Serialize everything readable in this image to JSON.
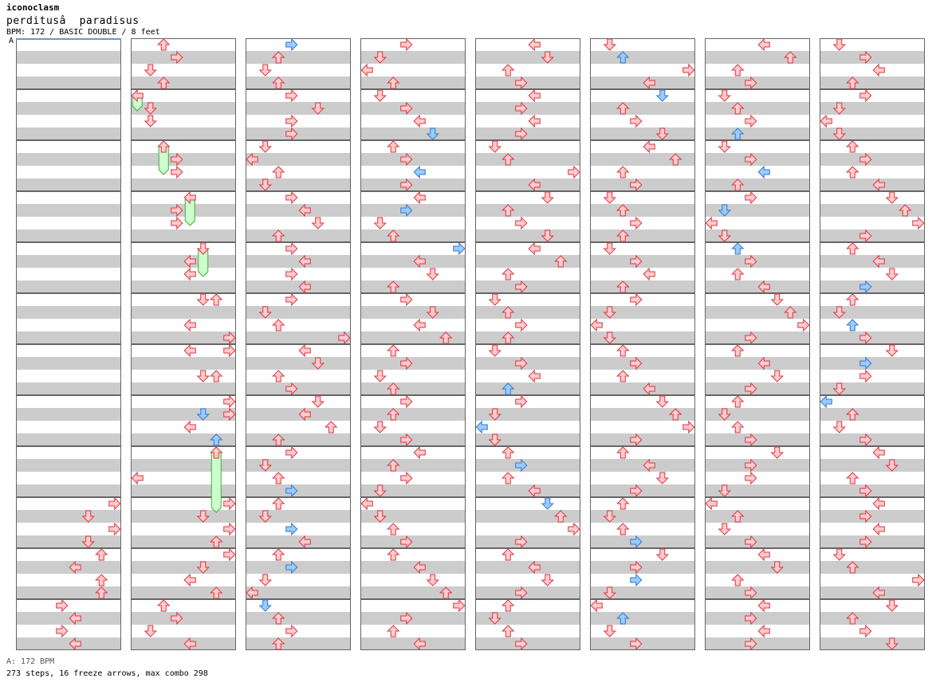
{
  "header": {
    "artist": "iconoclasm",
    "song": "perditusâ  paradisus",
    "info": "BPM: 172 / BASIC DOUBLE / 8 feet",
    "bpm_marker": "A"
  },
  "footer": {
    "bpm_legend": "A: 172 BPM",
    "stats": "273 steps, 16 freeze arrows, max combo 298"
  },
  "colors": {
    "row_gray": "#cccccc",
    "border": "#666666",
    "note_red_fill": "#ffcccc",
    "note_red_stroke": "#dd3344",
    "note_blue_fill": "#99ccff",
    "note_blue_stroke": "#3377cc",
    "freeze_fill": "#ccffcc",
    "freeze_stroke": "#44aa44",
    "bpm_line": "#6699cc"
  },
  "chart_data": {
    "type": "step-chart",
    "style": "double",
    "lanes_per_measure": 8,
    "lane_order": [
      "left-1",
      "down-1",
      "up-1",
      "right-1",
      "left-2",
      "down-2",
      "up-2",
      "right-2"
    ],
    "measures_per_column": 12,
    "columns": 8,
    "subdivisions_per_measure": 16,
    "notes_note": "beat = position within measure in 16ths; lane 0-7; color red|blue",
    "measures": [
      {
        "n": 1,
        "notes": []
      },
      {
        "n": 2,
        "notes": []
      },
      {
        "n": 3,
        "notes": []
      },
      {
        "n": 4,
        "notes": []
      },
      {
        "n": 5,
        "notes": []
      },
      {
        "n": 6,
        "notes": []
      },
      {
        "n": 7,
        "notes": []
      },
      {
        "n": 8,
        "notes": []
      },
      {
        "n": 9,
        "notes": []
      },
      {
        "n": 10,
        "notes": [
          {
            "b": 0,
            "l": 7
          },
          {
            "b": 4,
            "l": 5
          },
          {
            "b": 8,
            "l": 7
          },
          {
            "b": 12,
            "l": 5
          }
        ]
      },
      {
        "n": 11,
        "notes": [
          {
            "b": 0,
            "l": 6
          },
          {
            "b": 4,
            "l": 4
          },
          {
            "b": 8,
            "l": 6
          },
          {
            "b": 12,
            "l": 6
          }
        ]
      },
      {
        "n": 12,
        "notes": [
          {
            "b": 0,
            "l": 3
          },
          {
            "b": 4,
            "l": 4
          },
          {
            "b": 8,
            "l": 3
          },
          {
            "b": 12,
            "l": 4
          }
        ]
      },
      {
        "n": 13,
        "notes": [
          {
            "b": 0,
            "l": 2
          },
          {
            "b": 4,
            "l": 3
          },
          {
            "b": 8,
            "l": 1
          },
          {
            "b": 12,
            "l": 2
          }
        ]
      },
      {
        "n": 14,
        "notes": [
          {
            "b": 0,
            "l": 0,
            "f": 4
          },
          {
            "b": 4,
            "l": 1
          },
          {
            "b": 8,
            "l": 1
          }
        ]
      },
      {
        "n": 15,
        "notes": [
          {
            "b": 0,
            "l": 2,
            "f": 8
          },
          {
            "b": 4,
            "l": 3
          },
          {
            "b": 8,
            "l": 3
          }
        ]
      },
      {
        "n": 16,
        "notes": [
          {
            "b": 0,
            "l": 4,
            "f": 8
          },
          {
            "b": 4,
            "l": 3
          },
          {
            "b": 8,
            "l": 3
          }
        ]
      },
      {
        "n": 17,
        "notes": [
          {
            "b": 0,
            "l": 5,
            "f": 8
          },
          {
            "b": 4,
            "l": 4
          },
          {
            "b": 8,
            "l": 4
          }
        ]
      },
      {
        "n": 18,
        "notes": [
          {
            "b": 0,
            "l": 5
          },
          {
            "b": 0,
            "l": 6
          },
          {
            "b": 8,
            "l": 4
          },
          {
            "b": 12,
            "l": 7
          }
        ]
      },
      {
        "n": 19,
        "notes": [
          {
            "b": 0,
            "l": 4
          },
          {
            "b": 0,
            "l": 7
          },
          {
            "b": 8,
            "l": 5
          },
          {
            "b": 8,
            "l": 6
          }
        ]
      },
      {
        "n": 20,
        "notes": [
          {
            "b": 0,
            "l": 7
          },
          {
            "b": 4,
            "l": 7
          },
          {
            "b": 4,
            "l": 5,
            "c": "blue"
          },
          {
            "b": 8,
            "l": 4
          },
          {
            "b": 12,
            "l": 6,
            "c": "blue"
          }
        ]
      },
      {
        "n": 21,
        "notes": [
          {
            "b": 0,
            "l": 6,
            "f": 18
          },
          {
            "b": 8,
            "l": 0
          }
        ]
      },
      {
        "n": 22,
        "notes": [
          {
            "b": 0,
            "l": 7
          },
          {
            "b": 4,
            "l": 5
          },
          {
            "b": 8,
            "l": 7
          },
          {
            "b": 12,
            "l": 6
          }
        ]
      },
      {
        "n": 23,
        "notes": [
          {
            "b": 0,
            "l": 7
          },
          {
            "b": 4,
            "l": 5
          },
          {
            "b": 8,
            "l": 4
          },
          {
            "b": 12,
            "l": 6
          }
        ]
      },
      {
        "n": 24,
        "notes": [
          {
            "b": 0,
            "l": 2
          },
          {
            "b": 4,
            "l": 3
          },
          {
            "b": 8,
            "l": 1
          },
          {
            "b": 12,
            "l": 4
          }
        ]
      }
    ]
  }
}
